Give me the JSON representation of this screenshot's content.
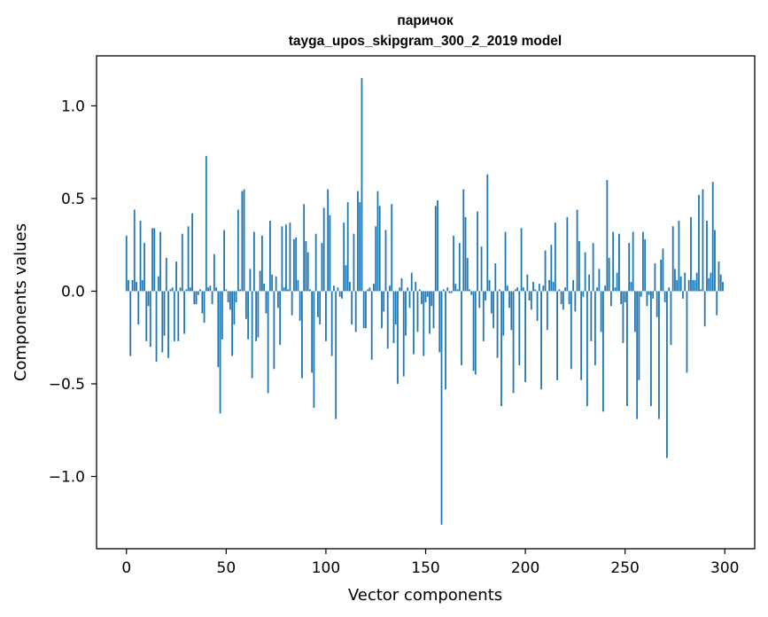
{
  "chart_data": {
    "type": "bar",
    "title_line1": "паричок",
    "title_line2": "tayga_upos_skipgram_300_2_2019 model",
    "xlabel": "Vector components",
    "ylabel": "Components values",
    "xlim": [
      -15,
      315
    ],
    "ylim": [
      -1.39,
      1.27
    ],
    "x_ticks": [
      0,
      50,
      100,
      150,
      200,
      250,
      300
    ],
    "x_tick_labels": [
      "0",
      "50",
      "100",
      "150",
      "200",
      "250",
      "300"
    ],
    "y_ticks": [
      -1.0,
      -0.5,
      0.0,
      0.5,
      1.0
    ],
    "y_tick_labels": [
      "−1.0",
      "−0.5",
      "0.0",
      "0.5",
      "1.0"
    ],
    "bar_color": "#1f77b4",
    "grid": false,
    "values": [
      0.3,
      0.06,
      -0.35,
      0.06,
      0.44,
      0.05,
      -0.18,
      0.38,
      0.06,
      0.26,
      -0.27,
      -0.08,
      -0.3,
      0.34,
      0.34,
      -0.38,
      0.08,
      0.32,
      -0.33,
      -0.24,
      0.18,
      -0.36,
      0.01,
      0.02,
      -0.27,
      0.16,
      -0.27,
      0.02,
      0.31,
      -0.23,
      0.01,
      0.35,
      0.02,
      0.42,
      -0.07,
      -0.07,
      -0.02,
      0.01,
      -0.12,
      -0.17,
      0.73,
      0.02,
      0.03,
      -0.07,
      0.2,
      0.02,
      -0.41,
      -0.66,
      -0.26,
      0.33,
      0.01,
      -0.06,
      -0.1,
      -0.35,
      -0.18,
      -0.06,
      0.44,
      0.01,
      0.54,
      0.55,
      -0.15,
      -0.26,
      0.12,
      -0.47,
      0.32,
      -0.27,
      -0.25,
      0.11,
      0.3,
      0.04,
      -0.12,
      -0.55,
      0.38,
      0.09,
      -0.42,
      0.08,
      -0.09,
      -0.29,
      0.35,
      0.02,
      0.36,
      0.01,
      0.37,
      -0.13,
      0.28,
      0.29,
      0.06,
      -0.16,
      -0.47,
      0.47,
      0.27,
      0.21,
      0.01,
      -0.44,
      -0.63,
      0.31,
      -0.14,
      -0.18,
      0.26,
      0.45,
      -0.27,
      0.55,
      0.41,
      -0.35,
      0.03,
      -0.69,
      0.02,
      -0.03,
      -0.04,
      0.37,
      0.14,
      0.48,
      0.05,
      -0.18,
      0.31,
      -0.22,
      0.54,
      0.48,
      1.15,
      -0.2,
      -0.2,
      0.01,
      0.02,
      -0.37,
      0.04,
      0.35,
      0.54,
      0.46,
      -0.2,
      -0.11,
      0.33,
      -0.31,
      0.03,
      0.47,
      -0.28,
      -0.18,
      -0.5,
      0.02,
      0.07,
      -0.46,
      -0.24,
      0.02,
      -0.09,
      0.1,
      -0.34,
      0.05,
      -0.22,
      0.01,
      -0.07,
      -0.35,
      -0.06,
      -0.03,
      -0.23,
      -0.08,
      -0.2,
      0.46,
      0.49,
      -0.33,
      -1.26,
      0.01,
      -0.53,
      0.02,
      -0.01,
      -0.01,
      0.3,
      0.04,
      0.01,
      0.26,
      -0.4,
      0.55,
      0.4,
      0.18,
      0.01,
      -0.02,
      -0.43,
      -0.45,
      0.43,
      -0.09,
      0.24,
      -0.27,
      -0.05,
      0.63,
      0.06,
      -0.12,
      -0.2,
      0.15,
      -0.36,
      0.01,
      -0.62,
      -0.24,
      0.32,
      0.03,
      -0.09,
      -0.21,
      -0.55,
      0.01,
      0.02,
      -0.4,
      0.34,
      0.02,
      -0.49,
      0.09,
      -0.05,
      -0.1,
      0.05,
      0.01,
      -0.16,
      0.04,
      -0.53,
      0.03,
      0.22,
      -0.21,
      0.06,
      0.25,
      0.05,
      0.37,
      -0.48,
      0.01,
      -0.07,
      -0.1,
      0.02,
      0.4,
      -0.07,
      -0.42,
      0.06,
      -0.11,
      0.44,
      0.27,
      -0.48,
      -0.03,
      0.21,
      -0.62,
      0.09,
      -0.27,
      0.26,
      -0.4,
      0.02,
      0.12,
      -0.22,
      -0.65,
      0.03,
      0.6,
      0.18,
      -0.08,
      0.32,
      0.02,
      0.1,
      0.31,
      -0.07,
      -0.28,
      -0.06,
      -0.62,
      0.26,
      0.05,
      0.32,
      -0.22,
      -0.69,
      -0.48,
      -0.03,
      0.32,
      0.28,
      -0.08,
      -0.02,
      -0.62,
      -0.04,
      0.15,
      -0.14,
      -0.69,
      0.17,
      0.23,
      -0.06,
      -0.9,
      0.02,
      -0.29,
      0.35,
      0.12,
      0.06,
      0.38,
      0.08,
      -0.04,
      0.1,
      -0.44,
      0.06,
      0.4,
      0.06,
      0.06,
      0.1,
      0.52,
      0.01,
      0.55,
      -0.19,
      0.38,
      0.07,
      0.1,
      0.59,
      0.33,
      -0.13,
      0.16,
      0.09,
      0.05
    ]
  }
}
